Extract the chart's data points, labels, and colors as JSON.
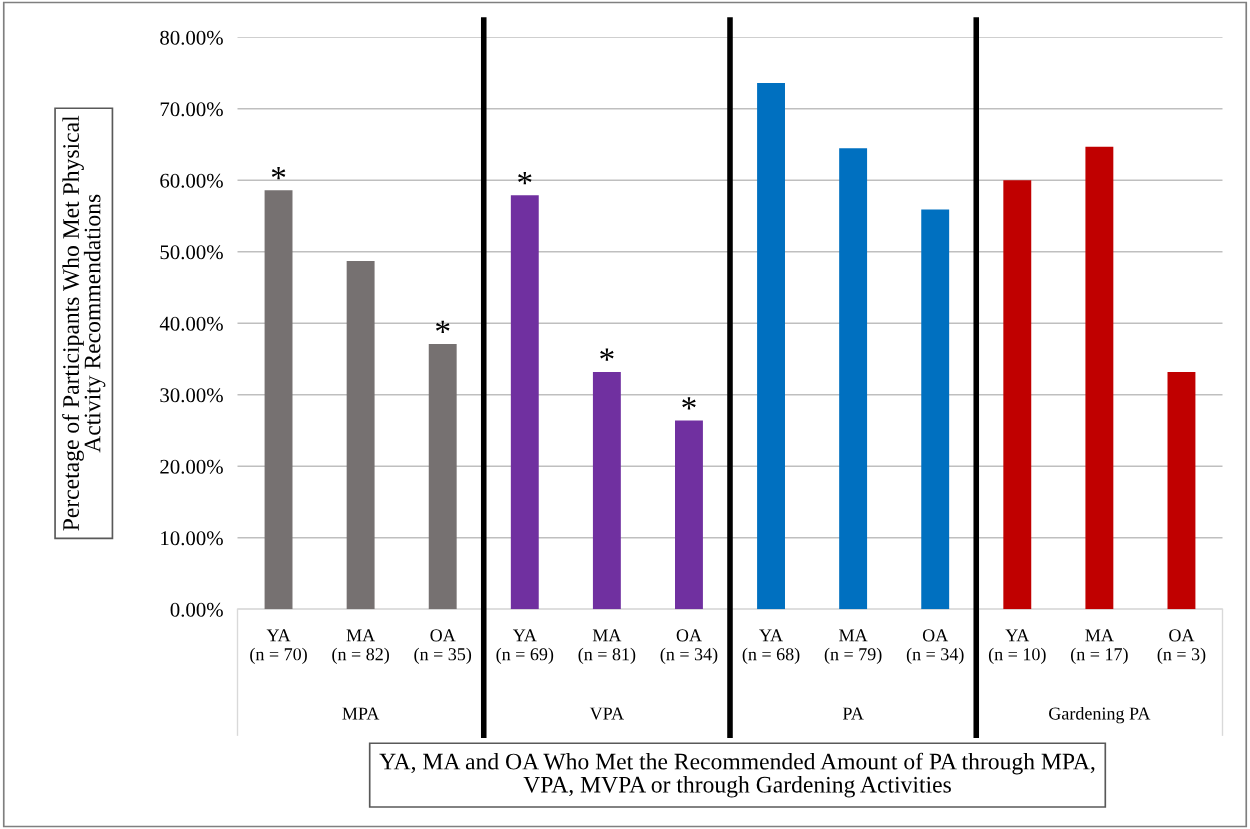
{
  "chart_data": {
    "type": "bar",
    "xlabel": "YA, MA and OA Who Met the Recommended Amount of PA through MPA, VPA, MVPA or through Gardening Activities",
    "ylabel": "Percetage of Participants Who Met Physical Activity Recommendations",
    "categories": [
      "YA\n(n = 70)",
      "MA\n(n = 82)",
      "OA\n(n = 35)",
      "YA\n(n = 69)",
      "MA\n(n = 81)",
      "OA\n(n = 34)",
      "YA\n(n = 68)",
      "MA\n(n = 79)",
      "OA\n(n = 34)",
      "YA\n(n = 10)",
      "MA\n(n = 17)",
      "OA\n(n = 3)"
    ],
    "values": [
      58.6,
      48.7,
      37.1,
      57.9,
      33.2,
      26.4,
      73.6,
      64.5,
      55.9,
      60.0,
      64.7,
      33.2
    ],
    "colors": [
      "#767171",
      "#767171",
      "#767171",
      "#7030a0",
      "#7030a0",
      "#7030a0",
      "#0070c0",
      "#0070c0",
      "#0070c0",
      "#c00000",
      "#c00000",
      "#c00000"
    ],
    "value_labels": [
      "*",
      null,
      "*",
      "*",
      "*",
      "*",
      null,
      null,
      null,
      null,
      null,
      null
    ],
    "annotations": [
      "MPA",
      "VPA",
      "PA",
      "Gardening PA"
    ],
    "ylim": [
      0,
      80
    ],
    "yticks": [
      {
        "value": 0,
        "label": "0.00%"
      },
      {
        "value": 10,
        "label": "10.00%"
      },
      {
        "value": 20,
        "label": "20.00%"
      },
      {
        "value": 30,
        "label": "30.00%"
      },
      {
        "value": 40,
        "label": "40.00%"
      },
      {
        "value": 50,
        "label": "50.00%"
      },
      {
        "value": 60,
        "label": "60.00%"
      },
      {
        "value": 70,
        "label": "70.00%"
      },
      {
        "value": 80,
        "label": "80.00%"
      }
    ],
    "grid": "y"
  }
}
